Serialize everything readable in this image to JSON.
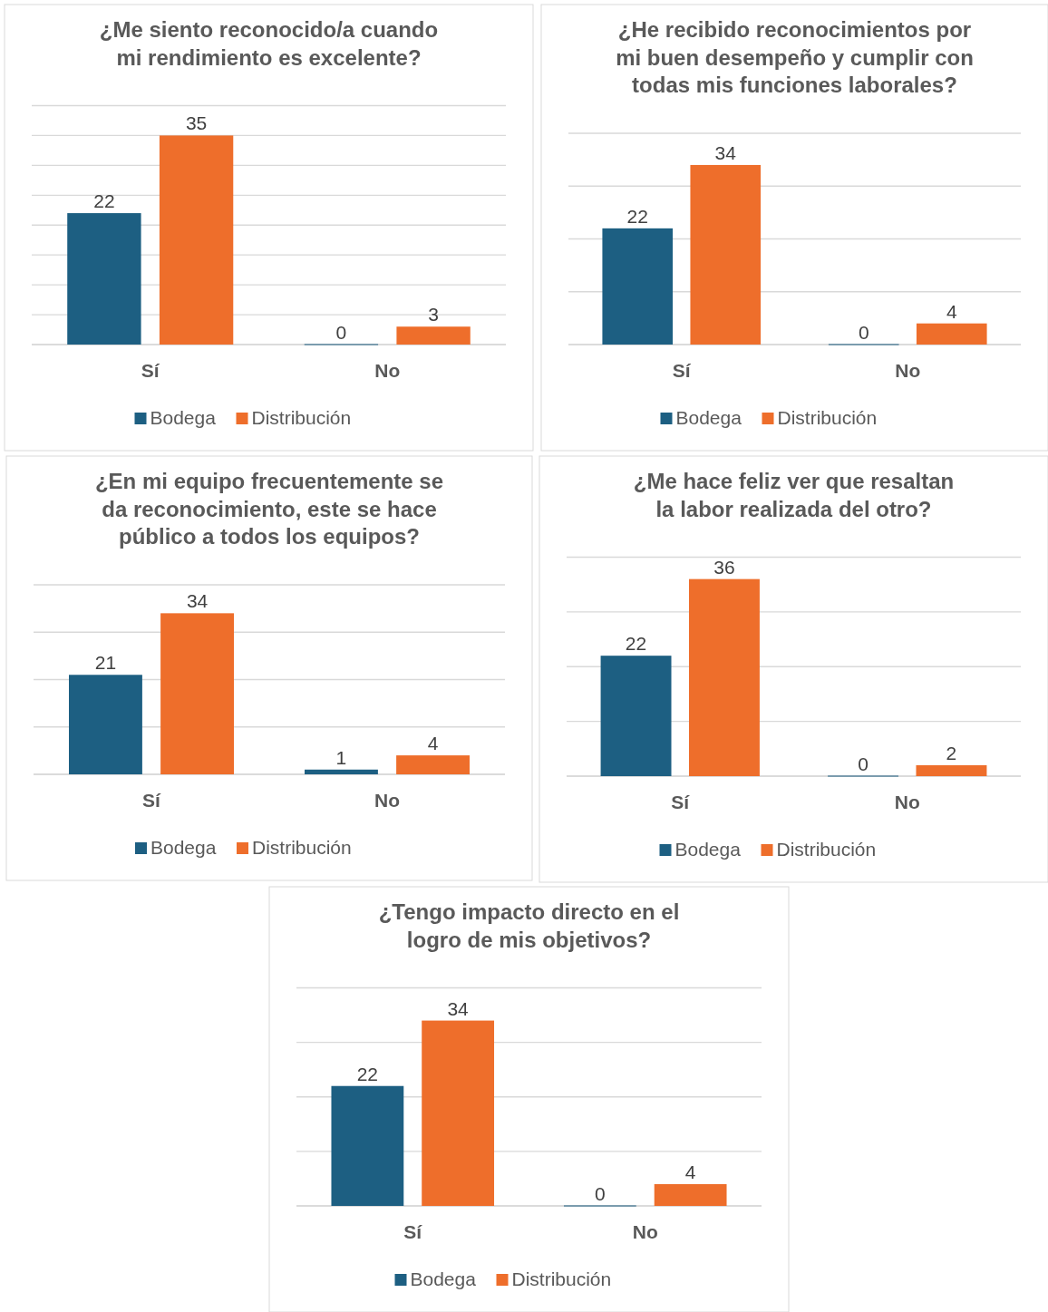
{
  "chart_data": [
    {
      "type": "bar",
      "title": "¿Me siento reconocido/a cuando mi rendimiento es excelente?",
      "categories": [
        "Sí",
        "No"
      ],
      "series": [
        {
          "name": "Bodega",
          "color": "#1d5f82",
          "values": [
            22,
            0
          ]
        },
        {
          "name": "Distribución",
          "color": "#ee6e2b",
          "values": [
            35,
            3
          ]
        }
      ],
      "ylim": [
        0,
        40
      ],
      "yticks": [
        {
          "value": 0,
          "label": null
        },
        {
          "value": 5,
          "label": null
        },
        {
          "value": 10,
          "label": null
        },
        {
          "value": 15,
          "label": null
        },
        {
          "value": 20,
          "label": null
        },
        {
          "value": 25,
          "label": null
        },
        {
          "value": 30,
          "label": null
        },
        {
          "value": 35,
          "label": null
        },
        {
          "value": 40,
          "label": null
        }
      ],
      "tick_labels": "x",
      "grid": "y",
      "legend": "bottom",
      "data_labels": true
    },
    {
      "type": "bar",
      "title": "¿He recibido reconocimientos por mi buen desempeño y cumplir con todas mis funciones laborales?",
      "categories": [
        "Sí",
        "No"
      ],
      "series": [
        {
          "name": "Bodega",
          "color": "#1d5f82",
          "values": [
            22,
            0
          ]
        },
        {
          "name": "Distribución",
          "color": "#ee6e2b",
          "values": [
            34,
            4
          ]
        }
      ],
      "ylim": [
        0,
        40
      ],
      "yticks": [
        {
          "value": 0,
          "label": null
        },
        {
          "value": 10,
          "label": null
        },
        {
          "value": 20,
          "label": null
        },
        {
          "value": 30,
          "label": null
        },
        {
          "value": 40,
          "label": null
        }
      ],
      "tick_labels": "x",
      "grid": "y",
      "legend": "bottom",
      "data_labels": true
    },
    {
      "type": "bar",
      "title": "¿En mi equipo frecuentemente se da reconocimiento, este se hace público a todos los equipos?",
      "categories": [
        "Sí",
        "No"
      ],
      "series": [
        {
          "name": "Bodega",
          "color": "#1d5f82",
          "values": [
            21,
            1
          ]
        },
        {
          "name": "Distribución",
          "color": "#ee6e2b",
          "values": [
            34,
            4
          ]
        }
      ],
      "ylim": [
        0,
        40
      ],
      "yticks": [
        {
          "value": 0,
          "label": null
        },
        {
          "value": 10,
          "label": null
        },
        {
          "value": 20,
          "label": null
        },
        {
          "value": 30,
          "label": null
        },
        {
          "value": 40,
          "label": null
        }
      ],
      "tick_labels": "x",
      "grid": "y",
      "legend": "bottom",
      "data_labels": true
    },
    {
      "type": "bar",
      "title": "¿Me hace feliz ver que resaltan la labor realizada del otro?",
      "categories": [
        "Sí",
        "No"
      ],
      "series": [
        {
          "name": "Bodega",
          "color": "#1d5f82",
          "values": [
            22,
            0
          ]
        },
        {
          "name": "Distribución",
          "color": "#ee6e2b",
          "values": [
            36,
            2
          ]
        }
      ],
      "ylim": [
        0,
        40
      ],
      "yticks": [
        {
          "value": 0,
          "label": null
        },
        {
          "value": 10,
          "label": null
        },
        {
          "value": 20,
          "label": null
        },
        {
          "value": 30,
          "label": null
        },
        {
          "value": 40,
          "label": null
        }
      ],
      "tick_labels": "x",
      "grid": "y",
      "legend": "bottom",
      "data_labels": true
    },
    {
      "type": "bar",
      "title": "¿Tengo impacto directo en el logro de mis objetivos?",
      "categories": [
        "Sí",
        "No"
      ],
      "series": [
        {
          "name": "Bodega",
          "color": "#1d5f82",
          "values": [
            22,
            0
          ]
        },
        {
          "name": "Distribución",
          "color": "#ee6e2b",
          "values": [
            34,
            4
          ]
        }
      ],
      "ylim": [
        0,
        40
      ],
      "yticks": [
        {
          "value": 0,
          "label": null
        },
        {
          "value": 10,
          "label": null
        },
        {
          "value": 20,
          "label": null
        },
        {
          "value": 30,
          "label": null
        },
        {
          "value": 40,
          "label": null
        }
      ],
      "tick_labels": "x",
      "grid": "y",
      "legend": "bottom",
      "data_labels": true
    }
  ]
}
